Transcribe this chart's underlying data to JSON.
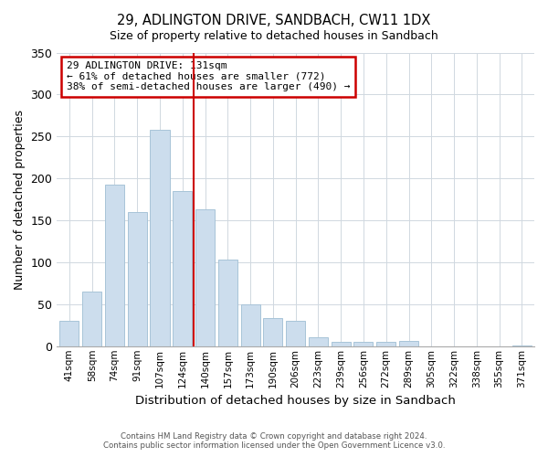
{
  "title": "29, ADLINGTON DRIVE, SANDBACH, CW11 1DX",
  "subtitle": "Size of property relative to detached houses in Sandbach",
  "xlabel": "Distribution of detached houses by size in Sandbach",
  "ylabel": "Number of detached properties",
  "bar_labels": [
    "41sqm",
    "58sqm",
    "74sqm",
    "91sqm",
    "107sqm",
    "124sqm",
    "140sqm",
    "157sqm",
    "173sqm",
    "190sqm",
    "206sqm",
    "223sqm",
    "239sqm",
    "256sqm",
    "272sqm",
    "289sqm",
    "305sqm",
    "322sqm",
    "338sqm",
    "355sqm",
    "371sqm"
  ],
  "bar_values": [
    30,
    65,
    193,
    160,
    258,
    185,
    163,
    103,
    50,
    33,
    30,
    11,
    5,
    5,
    5,
    6,
    0,
    0,
    0,
    0,
    1
  ],
  "bar_color": "#ccdded",
  "bar_edge_color": "#a8c4d8",
  "vline_x": 5.5,
  "vline_color": "#cc0000",
  "annotation_title": "29 ADLINGTON DRIVE: 131sqm",
  "annotation_line1": "← 61% of detached houses are smaller (772)",
  "annotation_line2": "38% of semi-detached houses are larger (490) →",
  "annotation_box_color": "#ffffff",
  "annotation_box_edge": "#cc0000",
  "ylim": [
    0,
    350
  ],
  "yticks": [
    0,
    50,
    100,
    150,
    200,
    250,
    300,
    350
  ],
  "footer1": "Contains HM Land Registry data © Crown copyright and database right 2024.",
  "footer2": "Contains public sector information licensed under the Open Government Licence v3.0."
}
